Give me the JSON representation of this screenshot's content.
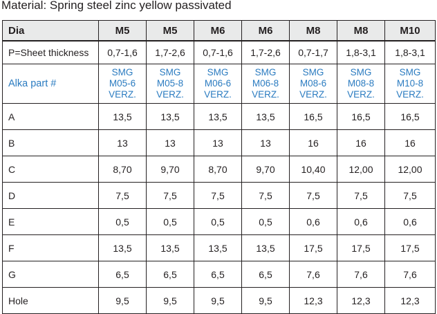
{
  "caption": "Material: Spring steel zinc yellow passivated",
  "header": {
    "label": "Dia",
    "columns": [
      "M5",
      "M5",
      "M6",
      "M6",
      "M8",
      "M8",
      "M10"
    ]
  },
  "sheet_row": {
    "label": "P=Sheet thickness",
    "values": [
      "0,7-1,6",
      "1,7-2,6",
      "0,7-1,6",
      "1,7-2,6",
      "0,7-1,7",
      "1,8-3,1",
      "1,8-3,1"
    ]
  },
  "part_row": {
    "label": "Alka part #",
    "values": [
      [
        "SMG",
        "M05-6",
        "VERZ."
      ],
      [
        "SMG",
        "M05-8",
        "VERZ."
      ],
      [
        "SMG",
        "M06-6",
        "VERZ."
      ],
      [
        "SMG",
        "M06-8",
        "VERZ."
      ],
      [
        "SMG",
        "M08-6",
        "VERZ."
      ],
      [
        "SMG",
        "M08-8",
        "VERZ."
      ],
      [
        "SMG",
        "M10-8",
        "VERZ."
      ]
    ]
  },
  "rows": [
    {
      "label": "A",
      "values": [
        "13,5",
        "13,5",
        "13,5",
        "13,5",
        "16,5",
        "16,5",
        "16,5"
      ]
    },
    {
      "label": "B",
      "values": [
        "13",
        "13",
        "13",
        "13",
        "16",
        "16",
        "16"
      ]
    },
    {
      "label": "C",
      "values": [
        "8,70",
        "9,70",
        "8,70",
        "9,70",
        "10,40",
        "12,00",
        "12,00"
      ]
    },
    {
      "label": "D",
      "values": [
        "7,5",
        "7,5",
        "7,5",
        "7,5",
        "7,5",
        "7,5",
        "7,5"
      ]
    },
    {
      "label": "E",
      "values": [
        "0,5",
        "0,5",
        "0,5",
        "0,5",
        "0,6",
        "0,6",
        "0,6"
      ]
    },
    {
      "label": "F",
      "values": [
        "13,5",
        "13,5",
        "13,5",
        "13,5",
        "17,5",
        "17,5",
        "17,5"
      ]
    },
    {
      "label": "G",
      "values": [
        "6,5",
        "6,5",
        "6,5",
        "6,5",
        "7,6",
        "7,6",
        "7,6"
      ]
    },
    {
      "label": "Hole",
      "values": [
        "9,5",
        "9,5",
        "9,5",
        "9,5",
        "12,3",
        "12,3",
        "12,3"
      ]
    }
  ],
  "colors": {
    "text": "#231f20",
    "accent_blue": "#2a7bc0",
    "header_bg": "#e9eaea"
  }
}
